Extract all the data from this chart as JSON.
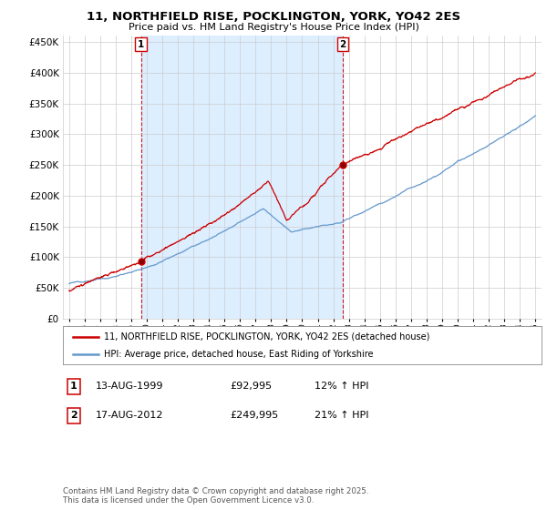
{
  "title": "11, NORTHFIELD RISE, POCKLINGTON, YORK, YO42 2ES",
  "subtitle": "Price paid vs. HM Land Registry's House Price Index (HPI)",
  "legend_line1": "11, NORTHFIELD RISE, POCKLINGTON, YORK, YO42 2ES (detached house)",
  "legend_line2": "HPI: Average price, detached house, East Riding of Yorkshire",
  "annotation1_label": "1",
  "annotation1_date": "13-AUG-1999",
  "annotation1_price": "£92,995",
  "annotation1_hpi": "12% ↑ HPI",
  "annotation1_year": 1999.62,
  "annotation1_value": 92995,
  "annotation2_label": "2",
  "annotation2_date": "17-AUG-2012",
  "annotation2_price": "£249,995",
  "annotation2_hpi": "21% ↑ HPI",
  "annotation2_year": 2012.62,
  "annotation2_value": 249995,
  "copyright": "Contains HM Land Registry data © Crown copyright and database right 2025.\nThis data is licensed under the Open Government Licence v3.0.",
  "red_color": "#cc0000",
  "blue_color": "#6699cc",
  "shade_color": "#ddeeff",
  "background_color": "#ffffff",
  "grid_color": "#cccccc",
  "ylim": [
    0,
    460000
  ],
  "yticks": [
    0,
    50000,
    100000,
    150000,
    200000,
    250000,
    300000,
    350000,
    400000,
    450000
  ],
  "xstart": 1995,
  "xend": 2025
}
